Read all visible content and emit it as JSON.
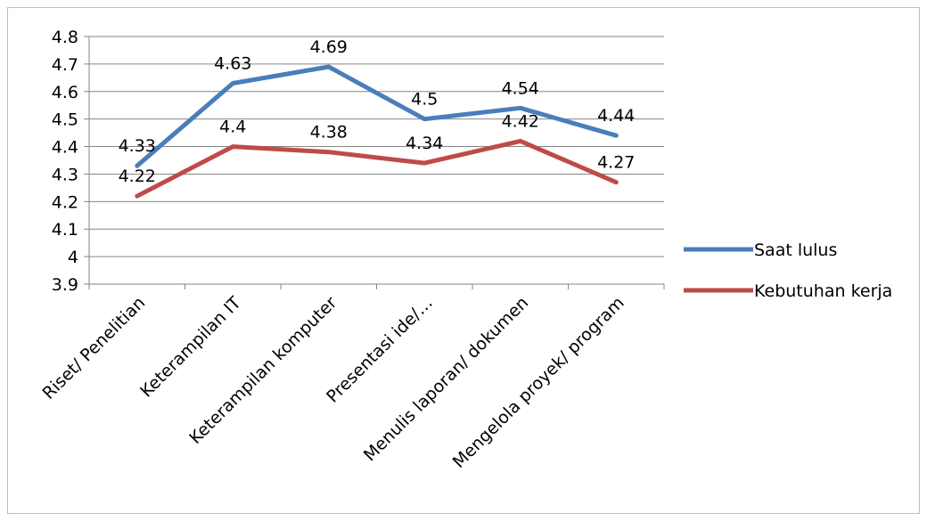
{
  "chart_data": {
    "type": "line",
    "title": "",
    "xlabel": "",
    "ylabel": "",
    "categories": [
      "Riset/ Penelitian",
      "Keterampilan IT",
      "Keterampilan komputer",
      "Presentasi ide/…",
      "Menulis laporan/ dokumen",
      "Mengelola proyek/ program"
    ],
    "series": [
      {
        "name": "Saat lulus",
        "color": "#4a7ebb",
        "values": [
          4.33,
          4.63,
          4.69,
          4.5,
          4.54,
          4.44
        ]
      },
      {
        "name": "Kebutuhan kerja",
        "color": "#be4b48",
        "values": [
          4.22,
          4.4,
          4.38,
          4.34,
          4.42,
          4.27
        ]
      }
    ],
    "ylim": [
      3.9,
      4.8
    ],
    "yticks": [
      "3.9",
      "4",
      "4.1",
      "4.2",
      "4.3",
      "4.4",
      "4.5",
      "4.6",
      "4.7",
      "4.8"
    ],
    "grid": true,
    "legend": "right",
    "data_labels": true
  }
}
